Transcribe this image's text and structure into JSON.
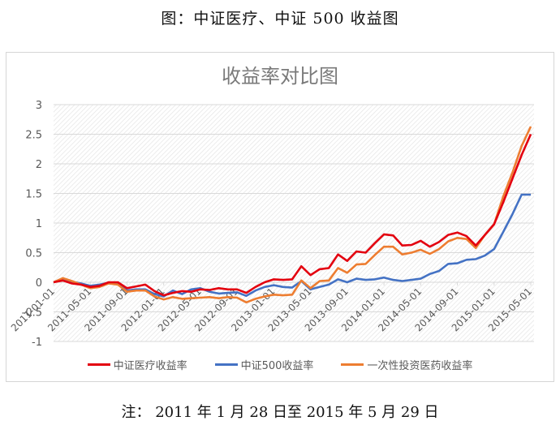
{
  "header": {
    "caption": "图：中证医疗、中证 500 收益图"
  },
  "footer": {
    "note": "注： 2011 年 1 月 28 日至 2015 年 5 月 29 日"
  },
  "colors": {
    "red": "#e3000f",
    "blue": "#4472c4",
    "orange": "#ed7d31",
    "grid": "#d9d9d9",
    "axis_text": "#595959"
  },
  "legend": [
    {
      "label": "中证医疗收益率",
      "color": "#e3000f"
    },
    {
      "label": "中证500收益率",
      "color": "#4472c4"
    },
    {
      "label": "一次性投资医药收益率",
      "color": "#ed7d31"
    }
  ],
  "chart_data": {
    "type": "line",
    "title": "收益率对比图",
    "xlabel": "",
    "ylabel": "",
    "ylim": [
      -1,
      3
    ],
    "yticks": [
      3,
      2.5,
      2,
      1.5,
      1,
      0.5,
      0,
      -0.5,
      -1
    ],
    "ytick_labels": [
      "3",
      "2.5",
      "2",
      "1.5",
      "1",
      "0.5",
      "0",
      "-0.5",
      "-1"
    ],
    "grid": true,
    "legend_position": "bottom",
    "xtick_labels": [
      "2011-01-01",
      "2011-05-01",
      "2011-09-01",
      "2012-01-01",
      "2012-05-01",
      "2012-09-01",
      "2013-01-01",
      "2013-05-01",
      "2013-09-01",
      "2014-01-01",
      "2014-05-01",
      "2014-09-01",
      "2015-01-01",
      "2015-05-01"
    ],
    "x": [
      "2011-01",
      "2011-02",
      "2011-03",
      "2011-04",
      "2011-05",
      "2011-06",
      "2011-07",
      "2011-08",
      "2011-09",
      "2011-10",
      "2011-11",
      "2011-12",
      "2012-01",
      "2012-02",
      "2012-03",
      "2012-04",
      "2012-05",
      "2012-06",
      "2012-07",
      "2012-08",
      "2012-09",
      "2012-10",
      "2012-11",
      "2012-12",
      "2013-01",
      "2013-02",
      "2013-03",
      "2013-04",
      "2013-05",
      "2013-06",
      "2013-07",
      "2013-08",
      "2013-09",
      "2013-10",
      "2013-11",
      "2013-12",
      "2014-01",
      "2014-02",
      "2014-03",
      "2014-04",
      "2014-05",
      "2014-06",
      "2014-07",
      "2014-08",
      "2014-09",
      "2014-10",
      "2014-11",
      "2014-12",
      "2015-01",
      "2015-02",
      "2015-03",
      "2015-04",
      "2015-05"
    ],
    "series": [
      {
        "name": "中证医疗收益率",
        "color": "#e3000f",
        "values": [
          0,
          0.03,
          -0.02,
          -0.04,
          -0.08,
          -0.06,
          0,
          0,
          -0.1,
          -0.07,
          -0.04,
          -0.15,
          -0.22,
          -0.18,
          -0.15,
          -0.16,
          -0.12,
          -0.13,
          -0.1,
          -0.12,
          -0.12,
          -0.18,
          -0.08,
          0,
          0.05,
          0.04,
          0.05,
          0.27,
          0.12,
          0.22,
          0.24,
          0.47,
          0.36,
          0.52,
          0.5,
          0.66,
          0.81,
          0.79,
          0.62,
          0.63,
          0.7,
          0.6,
          0.68,
          0.8,
          0.84,
          0.78,
          0.62,
          0.8,
          0.98,
          1.35,
          1.75,
          2.15,
          2.5
        ]
      },
      {
        "name": "中证500收益率",
        "color": "#4472c4",
        "values": [
          0,
          0.05,
          0.01,
          -0.02,
          -0.06,
          -0.04,
          -0.01,
          -0.02,
          -0.14,
          -0.12,
          -0.12,
          -0.2,
          -0.24,
          -0.14,
          -0.2,
          -0.12,
          -0.1,
          -0.16,
          -0.19,
          -0.18,
          -0.17,
          -0.23,
          -0.14,
          -0.08,
          -0.05,
          -0.08,
          -0.09,
          0.02,
          -0.12,
          -0.08,
          -0.04,
          0.05,
          0,
          0.06,
          0.04,
          0.05,
          0.08,
          0.04,
          0.02,
          0.04,
          0.06,
          0.14,
          0.19,
          0.31,
          0.32,
          0.38,
          0.39,
          0.45,
          0.56,
          0.85,
          1.15,
          1.48,
          1.48
        ]
      },
      {
        "name": "一次性投资医药收益率",
        "color": "#ed7d31",
        "values": [
          0,
          0.07,
          0.02,
          -0.04,
          -0.1,
          -0.08,
          -0.02,
          -0.04,
          -0.16,
          -0.14,
          -0.14,
          -0.24,
          -0.29,
          -0.25,
          -0.28,
          -0.27,
          -0.26,
          -0.25,
          -0.27,
          -0.25,
          -0.26,
          -0.34,
          -0.28,
          -0.24,
          -0.21,
          -0.22,
          -0.21,
          0.03,
          -0.1,
          0.02,
          0.03,
          0.24,
          0.16,
          0.3,
          0.31,
          0.46,
          0.6,
          0.6,
          0.47,
          0.5,
          0.55,
          0.48,
          0.56,
          0.69,
          0.75,
          0.73,
          0.58,
          0.8,
          0.98,
          1.45,
          1.85,
          2.3,
          2.63
        ]
      }
    ]
  }
}
